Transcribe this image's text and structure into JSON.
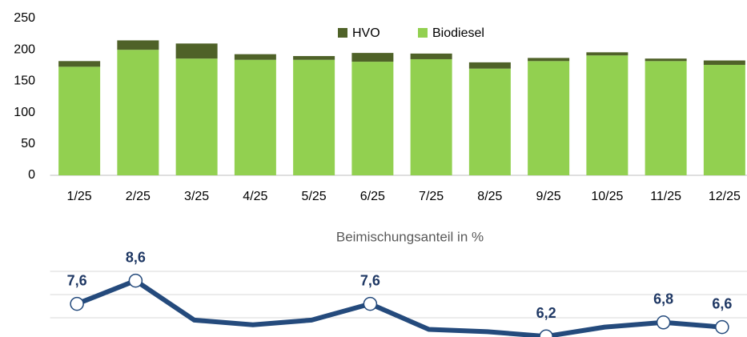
{
  "chart_data": [
    {
      "type": "bar",
      "stacked": true,
      "categories": [
        "1/25",
        "2/25",
        "3/25",
        "4/25",
        "5/25",
        "6/25",
        "7/25",
        "8/25",
        "9/25",
        "10/25",
        "11/25",
        "12/25"
      ],
      "series": [
        {
          "name": "HVO",
          "color": "#4f6228",
          "values": [
            9,
            15,
            24,
            9,
            6,
            14,
            9,
            10,
            5,
            5,
            4,
            7
          ]
        },
        {
          "name": "Biodiesel",
          "color": "#92d050",
          "values": [
            173,
            200,
            186,
            184,
            184,
            181,
            185,
            170,
            182,
            191,
            182,
            176
          ]
        }
      ],
      "ylim": [
        0,
        250
      ],
      "yticks": [
        0,
        50,
        100,
        150,
        200,
        250
      ],
      "grid": false,
      "legend": "top"
    },
    {
      "type": "line",
      "title": "Beimischungsanteil in %",
      "categories": [
        "1/25",
        "2/25",
        "3/25",
        "4/25",
        "5/25",
        "6/25",
        "7/25",
        "8/25",
        "9/25",
        "10/25",
        "11/25",
        "12/25"
      ],
      "values": [
        7.6,
        8.6,
        6.9,
        6.7,
        6.9,
        7.6,
        6.5,
        6.4,
        6.2,
        6.6,
        6.8,
        6.6
      ],
      "value_labels": [
        "7,6",
        "8,6",
        null,
        null,
        null,
        "7,6",
        null,
        null,
        "6,2",
        null,
        "6,8",
        "6,6"
      ],
      "color": "#244a7c",
      "ylim": [
        6,
        9
      ],
      "yticks": [
        7,
        8,
        9
      ],
      "grid": true,
      "show_tick_labels": false
    }
  ]
}
